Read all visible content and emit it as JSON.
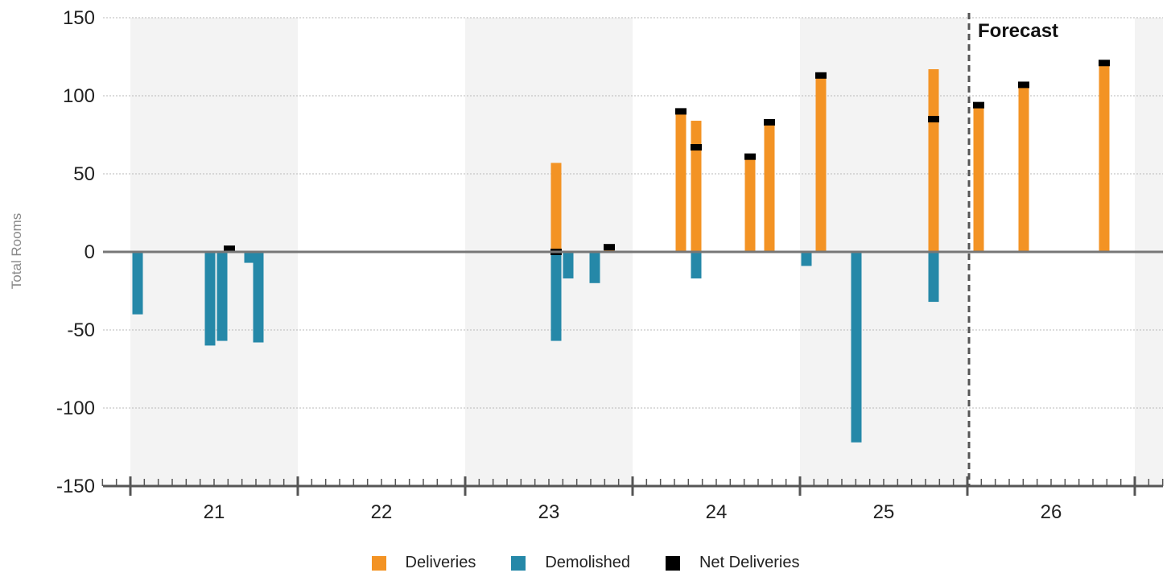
{
  "chart_data": {
    "type": "bar",
    "xlabel": "",
    "ylabel": "Total Rooms",
    "ylim": [
      -150,
      150
    ],
    "yticks": [
      "150",
      "100",
      "50",
      "0",
      "-50",
      "-100",
      "-150"
    ],
    "year_labels": [
      "21",
      "22",
      "23",
      "24",
      "25",
      "26"
    ],
    "forecast_label": "Forecast",
    "grid": true,
    "legend_position": "bottom",
    "colors": {
      "Deliveries": "#f39324",
      "Demolished": "#2588a8",
      "Net Deliveries": "#000000",
      "band": "#f3f3f3",
      "zero_line": "#777777"
    },
    "series": [
      {
        "name": "Deliveries",
        "points": [
          {
            "quarter": "23 Q3",
            "value": 57
          },
          {
            "quarter": "23 Q4",
            "value": 4
          },
          {
            "quarter": "24 Q2",
            "value": 90
          },
          {
            "quarter": "24 Q3",
            "value": 84
          },
          {
            "quarter": "24 Q3b",
            "value": 62
          },
          {
            "quarter": "24 Q4",
            "value": 84
          },
          {
            "quarter": "25 Q1",
            "value": 114
          },
          {
            "quarter": "25 Q4",
            "value": 117
          },
          {
            "quarter": "26 Q1",
            "value": 95
          },
          {
            "quarter": "26 Q2",
            "value": 108
          },
          {
            "quarter": "26 Q4",
            "value": 122
          }
        ]
      },
      {
        "name": "Demolished",
        "points": [
          {
            "quarter": "21 Q1",
            "value": -40
          },
          {
            "quarter": "21 Q3",
            "value": -4
          },
          {
            "quarter": "21 Q4",
            "value": -7
          },
          {
            "quarter": "22 Q1",
            "value": -60
          },
          {
            "quarter": "22 Q1b",
            "value": -57
          },
          {
            "quarter": "22 Q2",
            "value": -58
          },
          {
            "quarter": "23 Q3",
            "value": -57
          },
          {
            "quarter": "23 Q3b",
            "value": -17
          },
          {
            "quarter": "23 Q4",
            "value": -20
          },
          {
            "quarter": "24 Q3",
            "value": -17
          },
          {
            "quarter": "25 Q1",
            "value": -9
          },
          {
            "quarter": "25 Q2",
            "value": -122
          },
          {
            "quarter": "25 Q4",
            "value": -32
          }
        ]
      },
      {
        "name": "Net Deliveries",
        "points": [
          {
            "quarter": "21 Q3",
            "value": 2
          },
          {
            "quarter": "23 Q3",
            "value": 0
          },
          {
            "quarter": "23 Q4",
            "value": 3
          },
          {
            "quarter": "24 Q2",
            "value": 90
          },
          {
            "quarter": "24 Q3",
            "value": 67
          },
          {
            "quarter": "24 Q3b",
            "value": 61
          },
          {
            "quarter": "24 Q4",
            "value": 83
          },
          {
            "quarter": "25 Q1",
            "value": 113
          },
          {
            "quarter": "25 Q4",
            "value": 85
          },
          {
            "quarter": "26 Q1",
            "value": 94
          },
          {
            "quarter": "26 Q2",
            "value": 107
          },
          {
            "quarter": "26 Q4",
            "value": 121
          }
        ]
      }
    ]
  },
  "legend": {
    "items": [
      {
        "label": "Deliveries",
        "color": "#f39324"
      },
      {
        "label": "Demolished",
        "color": "#2588a8"
      },
      {
        "label": "Net Deliveries",
        "color": "#000000"
      }
    ]
  }
}
